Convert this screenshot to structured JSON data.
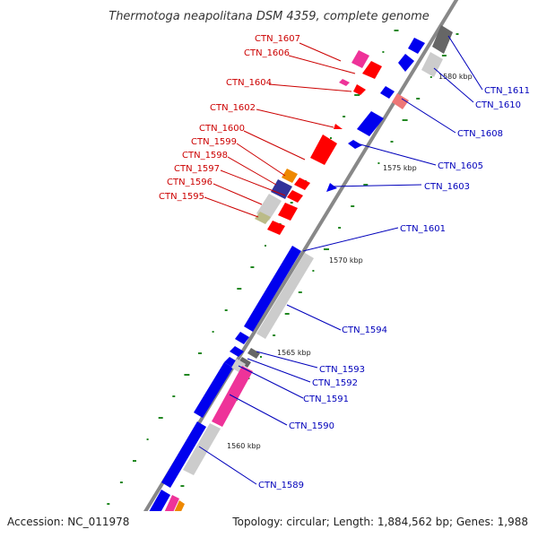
{
  "title": "Thermotoga neapolitana DSM 4359, complete genome",
  "footer": {
    "accession": "Accession: NC_011978",
    "summary": "Topology: circular; Length: 1,884,562 bp; Genes: 1,988"
  },
  "colors": {
    "reverse_strand": "#ff0000",
    "forward_strand": "#0000ee",
    "reverse_label": "#cc0000",
    "forward_label": "#0000bb",
    "backbone": "#888888",
    "gc_skew_ticks": "#228822"
  },
  "scale_marks": [
    "1560 kbp",
    "1565 kbp",
    "1570 kbp",
    "1575 kbp",
    "1580 kbp"
  ],
  "gene_labels_left": [
    "CTN_1607",
    "CTN_1606",
    "CTN_1604",
    "CTN_1602",
    "CTN_1600",
    "CTN_1599",
    "CTN_1598",
    "CTN_1597",
    "CTN_1596",
    "CTN_1595"
  ],
  "gene_labels_right": [
    "CTN_1611",
    "CTN_1610",
    "CTN_1608",
    "CTN_1605",
    "CTN_1603",
    "CTN_1601",
    "CTN_1594",
    "CTN_1593",
    "CTN_1592",
    "CTN_1591",
    "CTN_1590",
    "CTN_1589"
  ]
}
